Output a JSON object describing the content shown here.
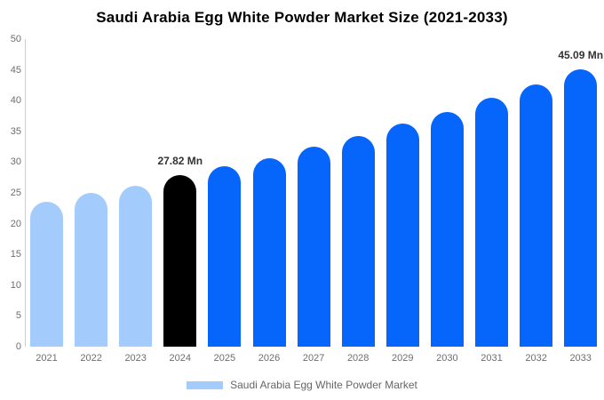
{
  "chart_data": {
    "type": "bar",
    "title": "Saudi Arabia Egg White Powder Market Size (2021-2033)",
    "xlabel": "",
    "ylabel": "",
    "categories": [
      "2021",
      "2022",
      "2023",
      "2024",
      "2025",
      "2026",
      "2027",
      "2028",
      "2029",
      "2030",
      "2031",
      "2032",
      "2033"
    ],
    "values": [
      23.6,
      25.0,
      26.2,
      27.82,
      29.3,
      30.7,
      32.5,
      34.3,
      36.2,
      38.2,
      40.4,
      42.6,
      45.09
    ],
    "bar_colors": [
      "#a3ccfc",
      "#a3ccfc",
      "#a3ccfc",
      "#000000",
      "#0666fb",
      "#0666fb",
      "#0666fb",
      "#0666fb",
      "#0666fb",
      "#0666fb",
      "#0666fb",
      "#0666fb",
      "#0666fb"
    ],
    "data_labels": [
      "",
      "",
      "",
      "27.82 Mn",
      "",
      "",
      "",
      "",
      "",
      "",
      "",
      "",
      "45.09 Mn"
    ],
    "ylim": [
      0,
      50
    ],
    "y_ticks": [
      0,
      5,
      10,
      15,
      20,
      25,
      30,
      35,
      40,
      45,
      50
    ],
    "grid": "off",
    "legend": {
      "position": "bottom",
      "label": "Saudi Arabia Egg White Powder Market",
      "swatch_color": "#a3ccfc"
    },
    "colors": {
      "historical_bar": "#a3ccfc",
      "base_year_bar": "#000000",
      "forecast_bar": "#0666fb",
      "axis_line": "#cccccc",
      "tick_text": "#6e6e6e",
      "value_label_text": "#333333",
      "title_text": "#000000"
    }
  }
}
